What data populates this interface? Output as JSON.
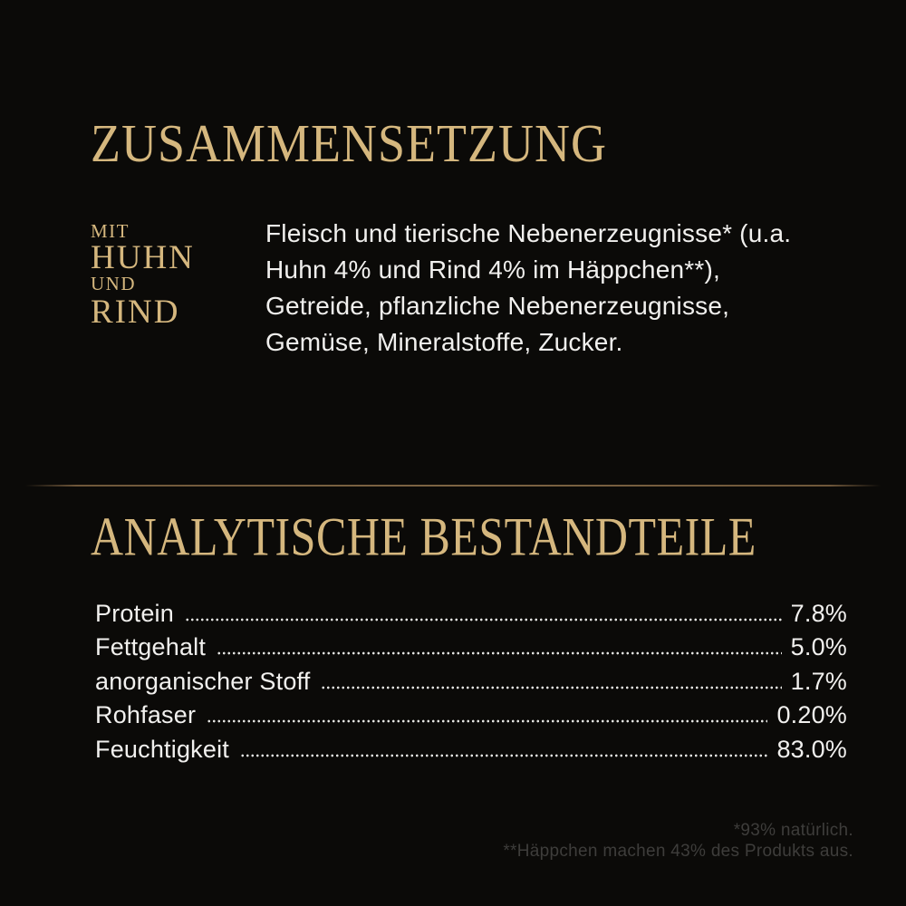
{
  "colors": {
    "background": "#0b0a08",
    "gold": "#d5b77e",
    "text": "#f1f0ee",
    "footnote": "#3e3d3b",
    "divider": "#6f573a"
  },
  "composition": {
    "title": "ZUSAMMENSETZUNG",
    "variant": {
      "prefix": "MIT",
      "protein1": "HUHN",
      "conjunction": "UND",
      "protein2": "RIND"
    },
    "lines": [
      "Fleisch und tierische Nebenerzeugnisse* (u.a.",
      "Huhn 4% und Rind 4% im Häppchen**),",
      "Getreide, pflanzliche Nebenerzeugnisse,",
      "Gemüse, Mineralstoffe, Zucker."
    ]
  },
  "analysis": {
    "title": "ANALYTISCHE BESTANDTEILE",
    "rows": [
      {
        "label": "Protein",
        "value": "7.8%"
      },
      {
        "label": "Fettgehalt",
        "value": "5.0%"
      },
      {
        "label": "anorganischer Stoff",
        "value": "1.7%"
      },
      {
        "label": "Rohfaser",
        "value": "0.20%"
      },
      {
        "label": "Feuchtigkeit",
        "value": "83.0%"
      }
    ]
  },
  "footnotes": [
    "*93% natürlich.",
    "**Häppchen machen 43% des Produkts aus."
  ]
}
